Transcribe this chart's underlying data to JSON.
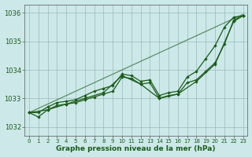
{
  "title": "Graphe pression niveau de la mer (hPa)",
  "bg_color": "#cce8e8",
  "grid_color": "#99bbbb",
  "line_color": "#1a5c1a",
  "xlim": [
    -0.5,
    23.5
  ],
  "ylim": [
    1031.7,
    1036.3
  ],
  "yticks": [
    1032,
    1033,
    1034,
    1035,
    1036
  ],
  "xticks": [
    0,
    1,
    2,
    3,
    4,
    5,
    6,
    7,
    8,
    9,
    10,
    11,
    12,
    13,
    14,
    15,
    16,
    17,
    18,
    19,
    20,
    21,
    22,
    23
  ],
  "series_straight": [
    [
      0,
      1032.5
    ],
    [
      23,
      1035.95
    ]
  ],
  "series_upper": [
    [
      0,
      1032.5
    ],
    [
      1,
      1032.5
    ],
    [
      2,
      1032.7
    ],
    [
      3,
      1032.85
    ],
    [
      4,
      1032.9
    ],
    [
      5,
      1032.95
    ],
    [
      6,
      1033.1
    ],
    [
      7,
      1033.25
    ],
    [
      8,
      1033.35
    ],
    [
      9,
      1033.45
    ],
    [
      10,
      1033.85
    ],
    [
      11,
      1033.8
    ],
    [
      12,
      1033.6
    ],
    [
      13,
      1033.65
    ],
    [
      14,
      1033.1
    ],
    [
      15,
      1033.2
    ],
    [
      16,
      1033.25
    ],
    [
      17,
      1033.75
    ],
    [
      18,
      1033.95
    ],
    [
      19,
      1034.4
    ],
    [
      20,
      1034.85
    ],
    [
      21,
      1035.5
    ],
    [
      22,
      1035.85
    ],
    [
      23,
      1035.9
    ]
  ],
  "series_mid": [
    [
      0,
      1032.5
    ],
    [
      1,
      1032.35
    ],
    [
      2,
      1032.6
    ],
    [
      3,
      1032.75
    ],
    [
      4,
      1032.8
    ],
    [
      5,
      1032.85
    ],
    [
      6,
      1032.95
    ],
    [
      7,
      1033.05
    ],
    [
      8,
      1033.15
    ],
    [
      9,
      1033.25
    ],
    [
      10,
      1033.75
    ],
    [
      11,
      1033.7
    ],
    [
      12,
      1033.5
    ],
    [
      13,
      1033.55
    ],
    [
      14,
      1033.0
    ],
    [
      15,
      1033.1
    ],
    [
      16,
      1033.15
    ],
    [
      17,
      1033.55
    ],
    [
      18,
      1033.65
    ],
    [
      19,
      1033.95
    ],
    [
      20,
      1034.25
    ],
    [
      21,
      1034.9
    ],
    [
      22,
      1035.75
    ],
    [
      23,
      1035.9
    ]
  ],
  "series_lower": [
    [
      0,
      1032.5
    ],
    [
      2,
      1032.6
    ],
    [
      4,
      1032.8
    ],
    [
      6,
      1033.0
    ],
    [
      8,
      1033.2
    ],
    [
      10,
      1033.8
    ],
    [
      12,
      1033.5
    ],
    [
      14,
      1033.0
    ],
    [
      16,
      1033.15
    ],
    [
      18,
      1033.6
    ],
    [
      20,
      1034.2
    ],
    [
      22,
      1035.7
    ],
    [
      23,
      1035.9
    ]
  ]
}
